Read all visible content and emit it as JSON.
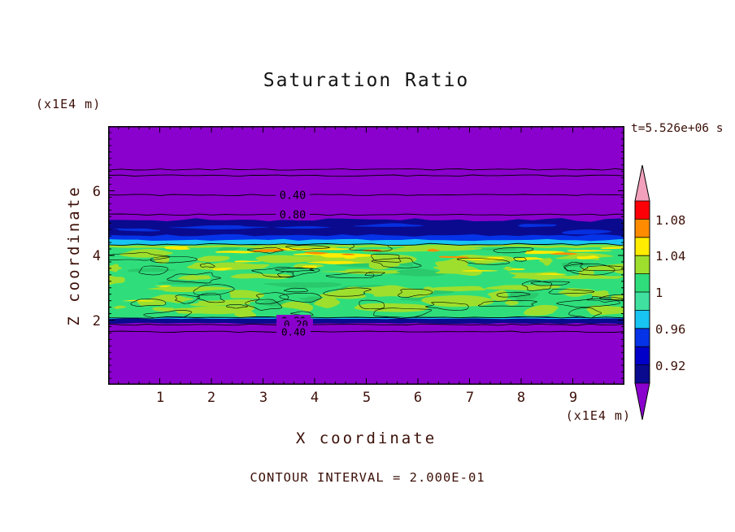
{
  "style": {
    "background": "#FFFFFF",
    "text_color": "#3C1008",
    "title_color": "#141414",
    "frame_color": "#000000"
  },
  "chart_data": {
    "type": "heatmap",
    "title": "Saturation Ratio",
    "xlabel": "X coordinate",
    "ylabel": "Z coordinate",
    "x_unit_label": "(x1E4 m)",
    "y_unit_label": "(x1E4 m)",
    "time_label": "t=5.526e+06 s",
    "footer_label": "CONTOUR INTERVAL = 2.000E-01",
    "contour_interval": 0.2,
    "xlim": [
      0,
      10
    ],
    "zlim": [
      0,
      8
    ],
    "x_ticks": [
      "1",
      "2",
      "3",
      "4",
      "5",
      "6",
      "7",
      "8",
      "9"
    ],
    "y_ticks": [
      "6",
      "4",
      "2"
    ],
    "field": {
      "seed": 11,
      "description": "Saturation ratio near 1 (mottled green band) for z between about 2 and 4.3; drops through cyan/blue/navy transition to below 0.9 (purple) above z=5.1 and below z=1.9",
      "colors": {
        "purple": "#8A00CC",
        "navy": "#0A0A8F",
        "blue": "#0533E8",
        "cyan": "#18C4F2",
        "green": "#2FDE7B",
        "green_dark": "#29C96C",
        "chartreuse": "#9EDF2D",
        "yellow": "#FFEC00",
        "orange": "#FF8C00",
        "red": "#FF1804",
        "contour": "#000000"
      },
      "bands": [
        {
          "z_from": 5.1,
          "z_to": 8.0,
          "color_key": "purple",
          "value": "< 0.90"
        },
        {
          "z_from": 4.62,
          "z_to": 5.1,
          "color_key": "navy",
          "value": "0.90 - 0.94"
        },
        {
          "z_from": 4.48,
          "z_to": 4.62,
          "color_key": "blue",
          "value": "0.94 - 0.96"
        },
        {
          "z_from": 4.34,
          "z_to": 4.48,
          "color_key": "cyan",
          "value": "0.96 - 0.98"
        },
        {
          "z_from": 2.08,
          "z_to": 4.34,
          "color_key": "green",
          "value": "0.98 - 1.06 mottled"
        },
        {
          "z_from": 1.9,
          "z_to": 2.08,
          "color_key": "navy",
          "value": "0.90 - 0.94"
        },
        {
          "z_from": 0.0,
          "z_to": 1.9,
          "color_key": "purple",
          "value": "< 0.90"
        }
      ],
      "noise": {
        "dark_green_count": 18,
        "chartreuse_count": 60,
        "yellow_upper_count": 16,
        "yellow_scatter_count": 7,
        "orange_count": 5,
        "red_count": 2,
        "outline_count": 46
      }
    },
    "contour_lines": {
      "upper": [
        {
          "z": 6.66,
          "label": ""
        },
        {
          "z": 6.47,
          "label": ""
        },
        {
          "z": 5.87,
          "label": "0.40"
        },
        {
          "z": 5.26,
          "label": "0.80"
        }
      ],
      "lower": [
        {
          "z": 1.86,
          "label": "0.80",
          "overlap_label": "0.20"
        },
        {
          "z": 1.64,
          "label": "0.40"
        }
      ]
    },
    "colorbar": {
      "labels": [
        "1.08",
        "1.04",
        "1",
        "0.96",
        "0.92"
      ],
      "segments": [
        "#FB0007",
        "#FF8C00",
        "#FFEC00",
        "#9EDF2D",
        "#2FDE7B",
        "#3FE0A0",
        "#18C4F2",
        "#0533E8",
        "#0000C8",
        "#0A0A8F"
      ],
      "over_color": "#F2A0BC",
      "under_color": "#8A00CC"
    }
  }
}
